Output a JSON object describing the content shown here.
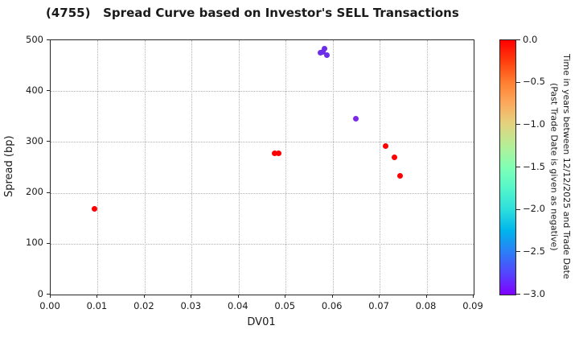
{
  "title": "(4755)   Spread Curve based on Investor's SELL Transactions",
  "chart_data": {
    "type": "scatter",
    "title": "(4755)   Spread Curve based on Investor's SELL Transactions",
    "xlabel": "DV01",
    "ylabel": "Spread (bp)",
    "xlim": [
      0.0,
      0.09
    ],
    "ylim": [
      0,
      500
    ],
    "grid": true,
    "x_ticks": [
      {
        "value": 0.0,
        "label": "0.00"
      },
      {
        "value": 0.01,
        "label": "0.01"
      },
      {
        "value": 0.02,
        "label": "0.02"
      },
      {
        "value": 0.03,
        "label": "0.03"
      },
      {
        "value": 0.04,
        "label": "0.04"
      },
      {
        "value": 0.05,
        "label": "0.05"
      },
      {
        "value": 0.06,
        "label": "0.06"
      },
      {
        "value": 0.07,
        "label": "0.07"
      },
      {
        "value": 0.08,
        "label": "0.08"
      },
      {
        "value": 0.09,
        "label": "0.09"
      }
    ],
    "y_ticks": [
      {
        "value": 0,
        "label": "0"
      },
      {
        "value": 100,
        "label": "100"
      },
      {
        "value": 200,
        "label": "200"
      },
      {
        "value": 300,
        "label": "300"
      },
      {
        "value": 400,
        "label": "400"
      },
      {
        "value": 500,
        "label": "500"
      }
    ],
    "points": [
      {
        "dv01": 0.0093,
        "spread": 168,
        "time_years": -0.02,
        "color": "#ff0000"
      },
      {
        "dv01": 0.0476,
        "spread": 277,
        "time_years": -0.02,
        "color": "#ff0000"
      },
      {
        "dv01": 0.0485,
        "spread": 278,
        "time_years": -0.02,
        "color": "#ff0000"
      },
      {
        "dv01": 0.0574,
        "spread": 475,
        "time_years": -2.8,
        "color": "#6c2ee9"
      },
      {
        "dv01": 0.058,
        "spread": 477,
        "time_years": -2.8,
        "color": "#6c2ee9"
      },
      {
        "dv01": 0.0583,
        "spread": 483,
        "time_years": -2.8,
        "color": "#6c2ee9"
      },
      {
        "dv01": 0.0588,
        "spread": 471,
        "time_years": -2.8,
        "color": "#6c2ee9"
      },
      {
        "dv01": 0.065,
        "spread": 346,
        "time_years": -2.8,
        "color": "#7b2ae6"
      },
      {
        "dv01": 0.0712,
        "spread": 292,
        "time_years": -0.02,
        "color": "#ff0000"
      },
      {
        "dv01": 0.0731,
        "spread": 269,
        "time_years": -0.02,
        "color": "#ff0000"
      },
      {
        "dv01": 0.0744,
        "spread": 234,
        "time_years": -0.02,
        "color": "#ff0000"
      }
    ],
    "colorbar": {
      "title_lines": [
        "Time in years between 12/12/2025 and Trade Date",
        "(Past Trade Date is given as negative)"
      ],
      "vmax": 0.0,
      "vmin": -3.0,
      "ticks": [
        {
          "value": 0.0,
          "label": "0.0"
        },
        {
          "value": -0.5,
          "label": "−0.5"
        },
        {
          "value": -1.0,
          "label": "−1.0"
        },
        {
          "value": -1.5,
          "label": "−1.5"
        },
        {
          "value": -2.0,
          "label": "−2.0"
        },
        {
          "value": -2.5,
          "label": "−2.5"
        },
        {
          "value": -3.0,
          "label": "−3.0"
        }
      ],
      "gradient_stops": [
        {
          "pos": 0.0,
          "color": "#ff0000"
        },
        {
          "pos": 0.08,
          "color": "#ff3c0d"
        },
        {
          "pos": 0.17,
          "color": "#ff8132"
        },
        {
          "pos": 0.25,
          "color": "#fbaa5e"
        },
        {
          "pos": 0.33,
          "color": "#e3d37f"
        },
        {
          "pos": 0.42,
          "color": "#b2ef98"
        },
        {
          "pos": 0.5,
          "color": "#80ffb5"
        },
        {
          "pos": 0.58,
          "color": "#55f6ca"
        },
        {
          "pos": 0.67,
          "color": "#2bdddd"
        },
        {
          "pos": 0.75,
          "color": "#00b4ec"
        },
        {
          "pos": 0.83,
          "color": "#2b80f6"
        },
        {
          "pos": 0.92,
          "color": "#5542fd"
        },
        {
          "pos": 1.0,
          "color": "#8000ff"
        }
      ]
    }
  }
}
